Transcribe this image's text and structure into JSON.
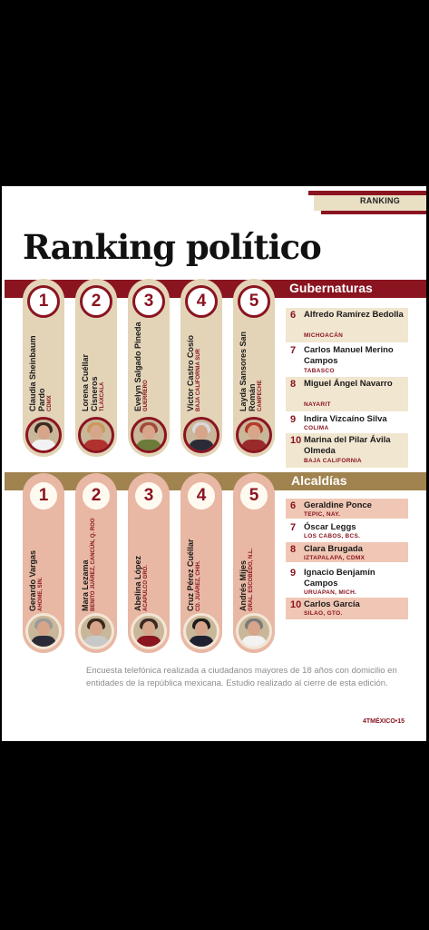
{
  "section": "RANKING",
  "title": "Ranking político",
  "gubernaturas": {
    "label": "Gubernaturas",
    "top5": [
      {
        "rank": "1",
        "name": "Claudia Sheinbaum Pardo",
        "place": "CDMX"
      },
      {
        "rank": "2",
        "name": "Lorena Cuéllar Cisneros",
        "place": "TLAXCALA"
      },
      {
        "rank": "3",
        "name": "Evelyn Salgado Pineda",
        "place": "GUERRERO"
      },
      {
        "rank": "4",
        "name": "Víctor Castro Cosío",
        "place": "BAJA CALIFORNIA SUR"
      },
      {
        "rank": "5",
        "name": "Layda Sansores San Román",
        "place": "CAMPECHE"
      }
    ],
    "rest": [
      {
        "rank": "6",
        "name": "Alfredo Ramírez Bedolla",
        "place": "MICHOACÁN"
      },
      {
        "rank": "7",
        "name": "Carlos Manuel Merino Campos",
        "place": "TABASCO"
      },
      {
        "rank": "8",
        "name": "Miguel Ángel Navarro",
        "place": "NAYARIT"
      },
      {
        "rank": "9",
        "name": "Indira Vizcaíno Silva",
        "place": "COLIMA"
      },
      {
        "rank": "10",
        "name": "Marina del Pilar Ávila Olmeda",
        "place": "BAJA CALIFORNIA"
      }
    ]
  },
  "alcaldias": {
    "label": "Alcaldías",
    "top5": [
      {
        "rank": "1",
        "name": "Gerardo Vargas",
        "place": "AHOME, SIN."
      },
      {
        "rank": "2",
        "name": "Mara Lezama",
        "place": "BENITO JUÁREZ, CANCÚN, Q. ROO"
      },
      {
        "rank": "3",
        "name": "Abelina López",
        "place": "ACAPULCO GRO."
      },
      {
        "rank": "4",
        "name": "Cruz Pérez Cuéllar",
        "place": "CD. JUÁREZ, CHIH."
      },
      {
        "rank": "5",
        "name": "Andrés Mijes",
        "place": "GRAL. ESCOBEDO, N.L."
      }
    ],
    "rest": [
      {
        "rank": "6",
        "name": "Geraldine Ponce",
        "place": "TEPIC, NAY."
      },
      {
        "rank": "7",
        "name": "Óscar Leggs",
        "place": "LOS CABOS, BCS."
      },
      {
        "rank": "8",
        "name": "Clara Brugada",
        "place": "IZTAPALAPA, CDMX"
      },
      {
        "rank": "9",
        "name": "Ignacio Benjamín Campos",
        "place": "URUAPAN, MICH."
      },
      {
        "rank": "10",
        "name": "Carlos García",
        "place": "SILAO, GTO."
      }
    ]
  },
  "footer": "Encuesta telefónica realizada a ciudadanos mayores de 18 años con domicilio en entidades de la república mexicana. Estudio realizado al cierre de esta edición.",
  "folio": "4TMÉXICO•15",
  "colors": {
    "accent": "#8a1420",
    "gold": "#a0834f",
    "cream": "#e3d4b8",
    "salmon": "#e8b8a4"
  }
}
